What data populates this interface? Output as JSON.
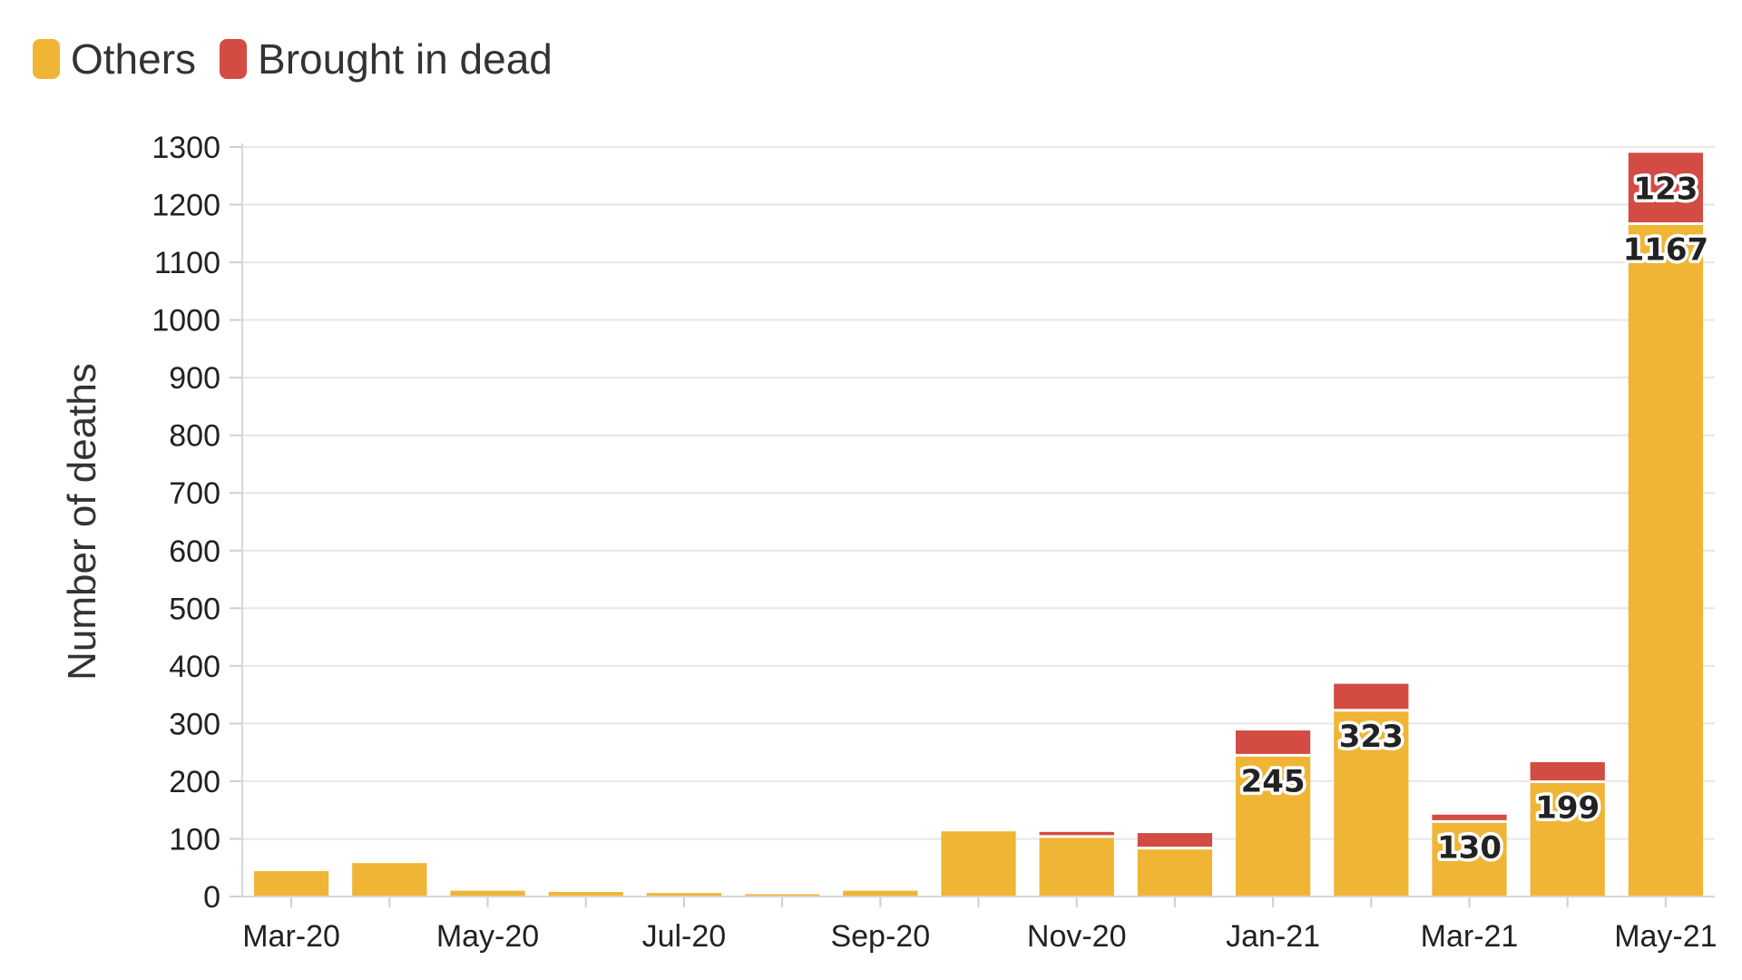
{
  "chart_data": {
    "type": "bar",
    "stacked": true,
    "categories": [
      "Mar-20",
      "Apr-20",
      "May-20",
      "Jun-20",
      "Jul-20",
      "Aug-20",
      "Sep-20",
      "Oct-20",
      "Nov-20",
      "Dec-20",
      "Jan-21",
      "Feb-21",
      "Mar-21",
      "Apr-21",
      "May-21"
    ],
    "x_tick_labels": [
      "Mar-20",
      "May-20",
      "Jul-20",
      "Sep-20",
      "Nov-20",
      "Jan-21",
      "Mar-21",
      "May-21"
    ],
    "series": [
      {
        "name": "Others",
        "color": "#f0b535",
        "values": [
          44,
          58,
          10,
          8,
          6,
          4,
          10,
          113,
          104,
          84,
          245,
          323,
          130,
          199,
          1167
        ]
      },
      {
        "name": "Brought in dead",
        "color": "#d24c43",
        "values": [
          0,
          0,
          0,
          0,
          0,
          0,
          0,
          0,
          8,
          26,
          43,
          46,
          12,
          34,
          123
        ]
      }
    ],
    "data_labels": [
      {
        "category": "Jan-21",
        "series": "Others",
        "text": "245"
      },
      {
        "category": "Feb-21",
        "series": "Others",
        "text": "323"
      },
      {
        "category": "Mar-21",
        "series": "Others",
        "text": "130"
      },
      {
        "category": "Apr-21",
        "series": "Others",
        "text": "199"
      },
      {
        "category": "May-21",
        "series": "Others",
        "text": "1167"
      },
      {
        "category": "May-21",
        "series": "Brought in dead",
        "text": "123"
      }
    ],
    "title": "",
    "xlabel": "",
    "ylabel": "Number of deaths",
    "ylim": [
      0,
      1300
    ],
    "yticks": [
      0,
      100,
      200,
      300,
      400,
      500,
      600,
      700,
      800,
      900,
      1000,
      1100,
      1200,
      1300
    ],
    "grid": true,
    "legend": "top-left"
  }
}
